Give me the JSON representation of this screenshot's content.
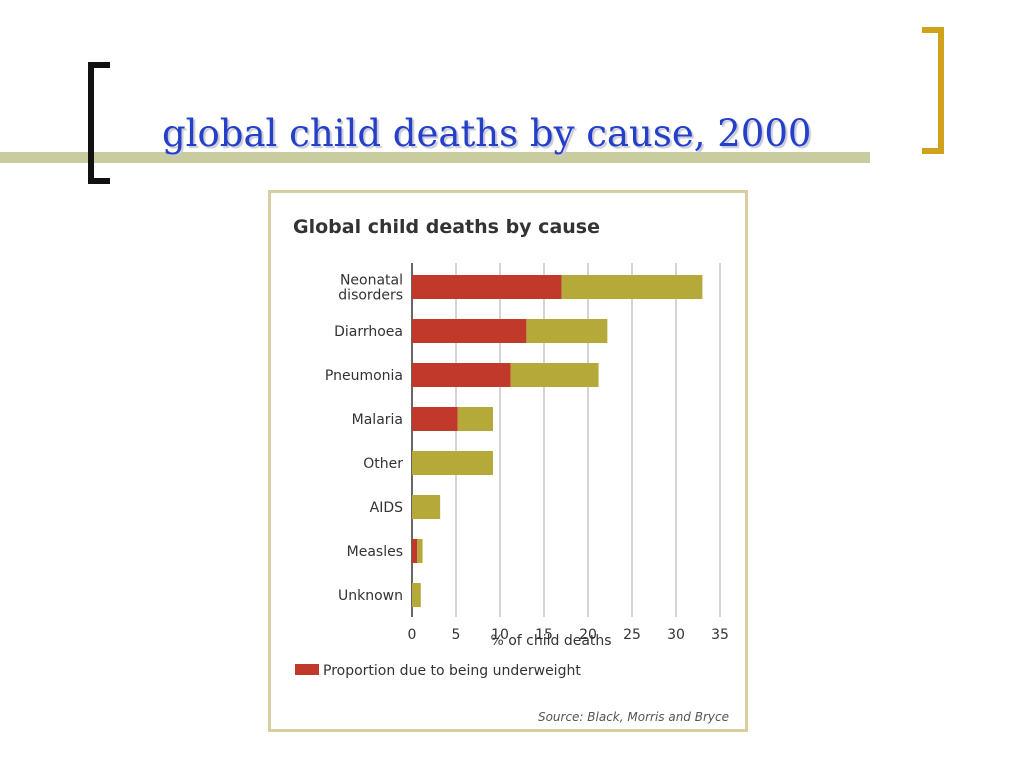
{
  "slide": {
    "title": "global child deaths by cause, 2000"
  },
  "chart_data": {
    "type": "bar",
    "orientation": "horizontal",
    "stacked": true,
    "title": "Global child deaths by cause",
    "categories": [
      "Neonatal\ndisorders",
      "Diarrhoea",
      "Pneumonia",
      "Malaria",
      "Other",
      "AIDS",
      "Measles",
      "Unknown"
    ],
    "series": [
      {
        "name": "Proportion due to being underweight",
        "color": "#c0392b",
        "values": [
          17,
          13,
          11.2,
          5.2,
          0,
          0,
          0.6,
          0
        ]
      },
      {
        "color": "#b5a93a",
        "values": [
          16,
          9.2,
          10,
          4,
          9.2,
          3.2,
          0.6,
          1
        ]
      }
    ],
    "xlabel": "% of child deaths",
    "ylabel": "",
    "xlim": [
      0,
      35
    ],
    "xticks": [
      0,
      5,
      10,
      15,
      20,
      25,
      30,
      35
    ],
    "grid": true,
    "legend": "bottom-left",
    "source": "Source: Black, Morris and Bryce"
  }
}
